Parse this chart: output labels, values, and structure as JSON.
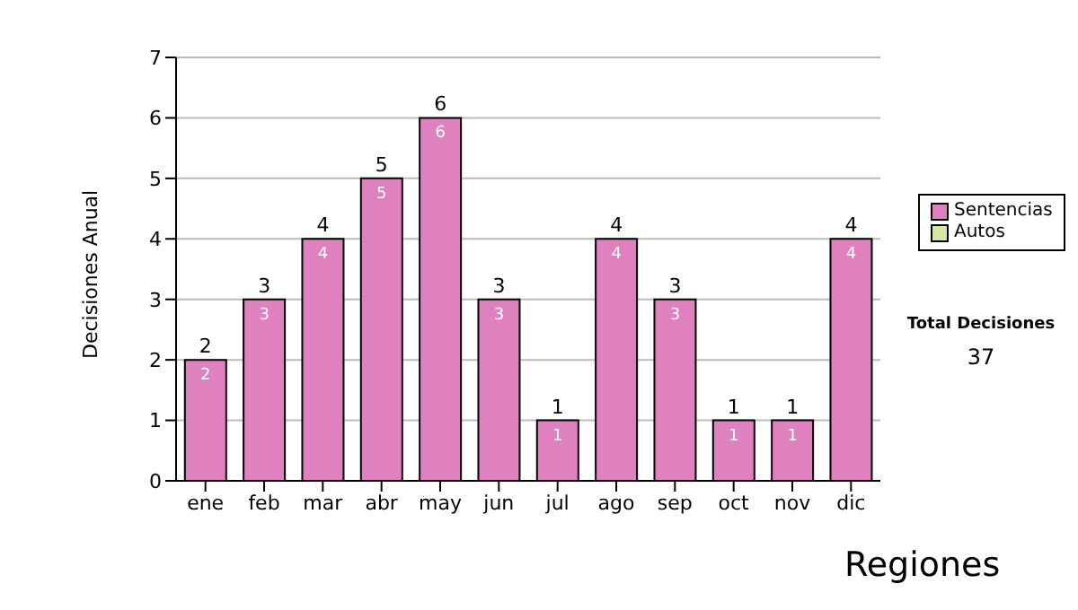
{
  "chart_data": {
    "type": "bar",
    "stacked": true,
    "ylabel": "Decisiones Anual",
    "categories": [
      "ene",
      "feb",
      "mar",
      "abr",
      "may",
      "jun",
      "jul",
      "ago",
      "sep",
      "oct",
      "nov",
      "dic"
    ],
    "series": [
      {
        "name": "Sentencias",
        "color": "#df80bf",
        "values": [
          2,
          3,
          4,
          5,
          6,
          3,
          1,
          4,
          3,
          1,
          1,
          4
        ],
        "value_labels": [
          "2",
          "3",
          "4",
          "5",
          "6",
          "3",
          "1",
          "4",
          "3",
          "1",
          "1",
          "4"
        ]
      },
      {
        "name": "Autos",
        "color": "#d4e8a0",
        "values": [
          0,
          0,
          0,
          0,
          0,
          0,
          0,
          0,
          0,
          0,
          0,
          0
        ]
      }
    ],
    "ylim": [
      0,
      7
    ],
    "yticks": [
      0,
      1,
      2,
      3,
      4,
      5,
      6,
      7
    ],
    "grid": "y",
    "legend": "right",
    "totals": [
      "2",
      "3",
      "4",
      "5",
      "6",
      "3",
      "1",
      "4",
      "3",
      "1",
      "1",
      "4"
    ],
    "annotations": [
      "Total Decisiones",
      "37",
      "Regiones"
    ]
  }
}
